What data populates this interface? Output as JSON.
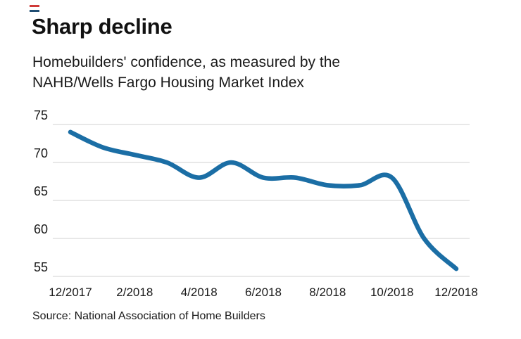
{
  "page": {
    "title": "Sharp decline",
    "subtitle_line1": "Homebuilders' confidence, as measured by the",
    "subtitle_line2": "NAHB/Wells Fargo Housing Market Index",
    "source": "Source: National Association of Home Builders"
  },
  "brand_mark": {
    "top_color": "#d03a38",
    "bottom_color": "#1f4d72"
  },
  "chart_data": {
    "type": "line",
    "title": "Sharp decline",
    "subtitle": "Homebuilders' confidence, as measured by the NAHB/Wells Fargo Housing Market Index",
    "source": "Source: National Association of Home Builders",
    "x": [
      "12/2017",
      "1/2018",
      "2/2018",
      "3/2018",
      "4/2018",
      "5/2018",
      "6/2018",
      "7/2018",
      "8/2018",
      "9/2018",
      "10/2018",
      "11/2018",
      "12/2018"
    ],
    "series": [
      {
        "name": "NAHB/Wells Fargo Housing Market Index",
        "values": [
          74,
          72,
          71,
          70,
          68,
          70,
          68,
          68,
          67,
          67,
          68,
          60,
          56
        ]
      }
    ],
    "y_ticks": [
      55,
      60,
      65,
      70,
      75
    ],
    "x_tick_labels": [
      "12/2017",
      "2/2018",
      "4/2018",
      "6/2018",
      "8/2018",
      "10/2018",
      "12/2018"
    ],
    "ylim": [
      55,
      75
    ],
    "grid": "horizontal-only",
    "legend": "none",
    "line_color": "#1b6ea5",
    "grid_color": "#d2d2d2",
    "text_color": "#1a1a1a"
  }
}
